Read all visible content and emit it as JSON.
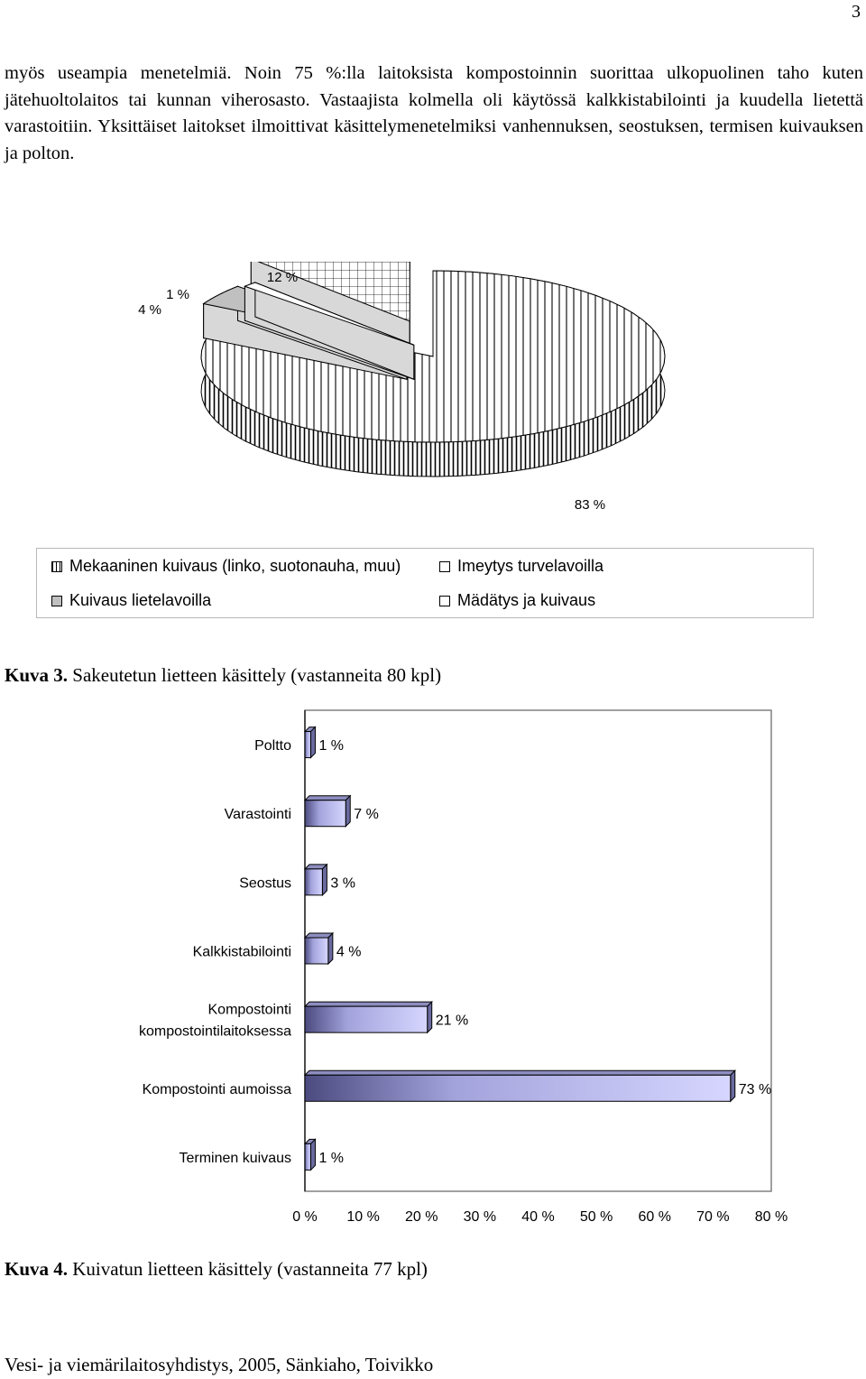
{
  "page": {
    "number": "3",
    "paragraph": "myös useampia menetelmiä. Noin 75 %:lla laitoksista kompostoinnin suorittaa ulkopuolinen taho kuten jätehuoltolaitos tai kunnan viherosasto. Vastaajista kolmella oli käytössä kalkkistabilointi ja kuudella lietettä varastoitiin. Yksittäiset laitokset ilmoittivat käsittelymenetelmiksi vanhennuksen, seostuksen, termisen kuivauksen ja polton.",
    "footer": "Vesi- ja viemärilaitosyhdistys, 2005, Sänkiaho, Toivikko"
  },
  "captions": {
    "fig3_label": "Kuva 3.",
    "fig3_text": " Sakeutetun lietteen käsittely  (vastanneita 80 kpl)",
    "fig4_label": "Kuva 4.",
    "fig4_text": " Kuivatun lietteen käsittely (vastanneita 77 kpl)"
  },
  "chart_data": [
    {
      "type": "pie",
      "labels": [
        "Mekaaninen kuivaus (linko, suotonauha, muu)",
        "Kuivaus lietelavoilla",
        "Imeytys turvelavoilla",
        "Mädätys ja kuivaus"
      ],
      "values": [
        83,
        4,
        1,
        12
      ],
      "data_labels": [
        "83 %",
        "4 %",
        "1 %",
        "12 %"
      ],
      "legend": {
        "position": "bottom",
        "items": [
          "Mekaaninen kuivaus (linko, suotonauha, muu)",
          "Imeytys turvelavoilla",
          "Kuivaus lietelavoilla",
          "Mädätys ja kuivaus"
        ]
      },
      "colors": {
        "Mekaaninen kuivaus (linko, suotonauha, muu)": "#ffffff",
        "Kuivaus lietelavoilla": "#c0c0c0",
        "Imeytys turvelavoilla": "#ffffff",
        "Mädätys ja kuivaus": "#ffffff"
      }
    },
    {
      "type": "bar",
      "orientation": "horizontal",
      "categories": [
        "Poltto",
        "Varastointi",
        "Seostus",
        "Kalkkistabilointi",
        "Kompostointi kompostointilaitoksessa",
        "Kompostointi aumoissa",
        "Terminen kuivaus"
      ],
      "category_lines": [
        [
          "Poltto"
        ],
        [
          "Varastointi"
        ],
        [
          "Seostus"
        ],
        [
          "Kalkkistabilointi"
        ],
        [
          "Kompostointi",
          "kompostointilaitoksessa"
        ],
        [
          "Kompostointi aumoissa"
        ],
        [
          "Terminen kuivaus"
        ]
      ],
      "values": [
        1,
        7,
        3,
        4,
        21,
        73,
        1
      ],
      "data_labels": [
        "1 %",
        "7 %",
        "3 %",
        "4 %",
        "21 %",
        "73 %",
        "1 %"
      ],
      "xlim": [
        0,
        80
      ],
      "x_ticks": [
        "0 %",
        "10 %",
        "20 %",
        "30 %",
        "40 %",
        "50 %",
        "60 %",
        "70 %",
        "80 %"
      ],
      "grid": false,
      "colors": {
        "bar": "#c7c7ef",
        "bar_edge": "#000000"
      }
    }
  ]
}
